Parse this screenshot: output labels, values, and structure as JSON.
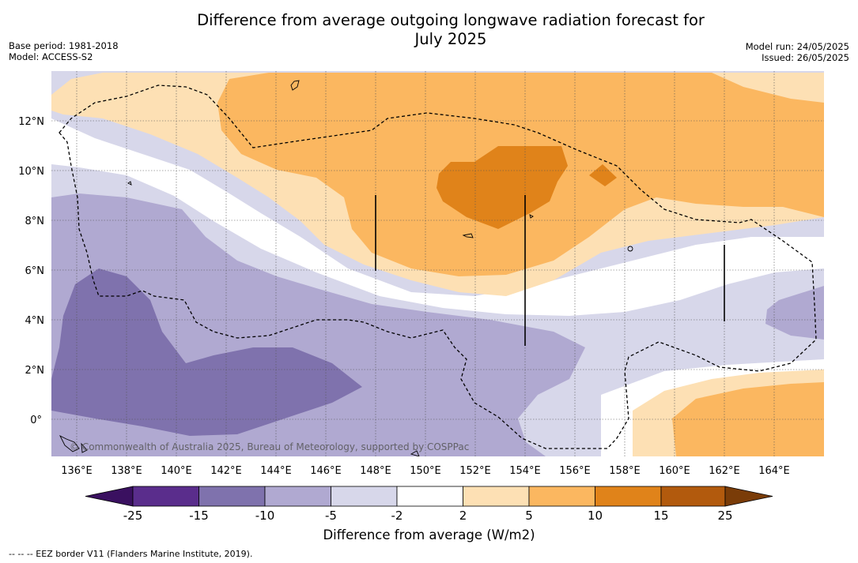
{
  "header": {
    "title_line1": "Difference from average outgoing longwave radiation forecast for",
    "title_line2": "July 2025",
    "base_period": "Base period: 1981-2018",
    "model": "Model: ACCESS-S2",
    "model_run": "Model run: 24/05/2025",
    "issued": "Issued: 26/05/2025"
  },
  "map": {
    "longitude_labels": [
      "136°E",
      "138°E",
      "140°E",
      "142°E",
      "144°E",
      "146°E",
      "148°E",
      "150°E",
      "152°E",
      "154°E",
      "156°E",
      "158°E",
      "160°E",
      "162°E",
      "164°E"
    ],
    "latitude_labels": [
      "12°N",
      "10°N",
      "8°N",
      "6°N",
      "4°N",
      "2°N",
      "0°"
    ],
    "copyright": "© Commonwealth of Australia 2025, Bureau of Meteorology, supported by COSPPac",
    "colors": {
      "deep_purple": "#3a1060",
      "purple1": "#5a2d8c",
      "purple2": "#7f72ad",
      "purple3": "#b0a9d1",
      "purple4": "#d7d7ea",
      "white": "#ffffff",
      "orange1": "#fde0b4",
      "orange2": "#fbb760",
      "orange3": "#e0831a",
      "orange4": "#b25a0d",
      "deep_orange": "#7a3c08"
    }
  },
  "colorbar": {
    "ticks": [
      "-25",
      "-15",
      "-10",
      "-5",
      "-2",
      "2",
      "5",
      "10",
      "15",
      "25"
    ],
    "label": "Difference from average (W/m2)"
  },
  "footnote": "-- -- -- EEZ border V11 (Flanders Marine Institute, 2019)."
}
